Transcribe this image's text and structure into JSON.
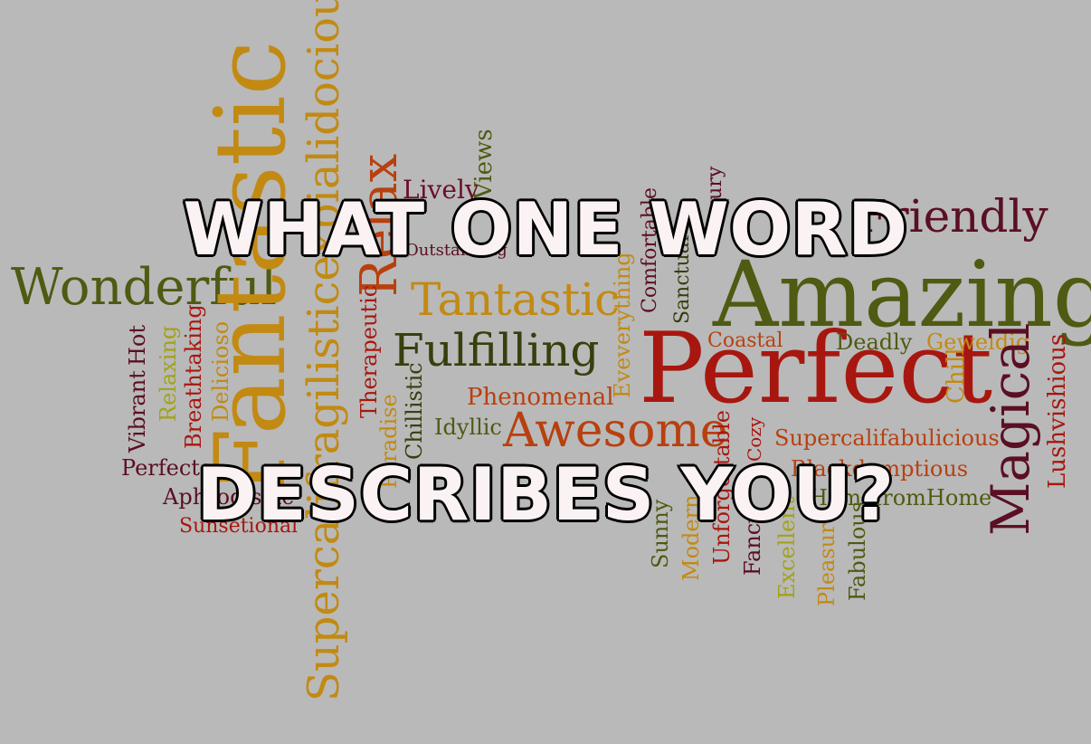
{
  "headline": {
    "line1": "WHAT ONE WORD",
    "line2": "DESCRIBES YOU?"
  },
  "colors": {
    "background": "#b9b9b9",
    "olive": "#4f5a12",
    "gold": "#c28a12",
    "maroon": "#5b0f23",
    "red": "#a8170f",
    "orange": "#b8400f",
    "darkgreen": "#36400d",
    "yellowgreen": "#a2a21a",
    "headline_fill": "#fbf3f3"
  },
  "words": [
    {
      "name": "word-wonderful",
      "text": "Wonderful"
    },
    {
      "name": "word-fantastic",
      "text": "Fantastic"
    },
    {
      "name": "word-supercalifragilisticexpialidocious",
      "text": "Supercalifragilisticexpialidocious"
    },
    {
      "name": "word-relax",
      "text": "Relax"
    },
    {
      "name": "word-lively",
      "text": "Lively"
    },
    {
      "name": "word-views",
      "text": "Views"
    },
    {
      "name": "word-friendly",
      "text": "Friendly"
    },
    {
      "name": "word-amazing",
      "text": "Amazing"
    },
    {
      "name": "word-tantastic",
      "text": "Tantastic"
    },
    {
      "name": "word-fulfilling",
      "text": "Fulfilling"
    },
    {
      "name": "word-perfect",
      "text": "Perfect"
    },
    {
      "name": "word-coastal",
      "text": "Coastal"
    },
    {
      "name": "word-deadly",
      "text": "Deadly"
    },
    {
      "name": "word-geweldig",
      "text": "Geweldig"
    },
    {
      "name": "word-chill",
      "text": "Chill"
    },
    {
      "name": "word-magical",
      "text": "Magical"
    },
    {
      "name": "word-lushvishious",
      "text": "Lushvishious"
    },
    {
      "name": "word-phenomenal",
      "text": "Phenomenal"
    },
    {
      "name": "word-awesome",
      "text": "Awesome"
    },
    {
      "name": "word-idyllic",
      "text": "Idyllic"
    },
    {
      "name": "word-chillistic",
      "text": "Chillistic"
    },
    {
      "name": "word-paradise",
      "text": "Paradise"
    },
    {
      "name": "word-therapeutic",
      "text": "Therapeutic"
    },
    {
      "name": "word-delicioso",
      "text": "Delicioso"
    },
    {
      "name": "word-breathtaking",
      "text": "Breathtaking"
    },
    {
      "name": "word-relaxing",
      "text": "Relaxing"
    },
    {
      "name": "word-vibrant",
      "text": "Vibrant"
    },
    {
      "name": "word-hot",
      "text": "Hot"
    },
    {
      "name": "word-perfecto",
      "text": "Perfecto"
    },
    {
      "name": "word-aphrodisiac",
      "text": "Aphrodisiac"
    },
    {
      "name": "word-sunsetional",
      "text": "Sunsetional"
    },
    {
      "name": "word-supercalifabulicious",
      "text": "Supercalifabulicious"
    },
    {
      "name": "word-blackdumptious",
      "text": "Blackdumptious"
    },
    {
      "name": "word-homefromhome",
      "text": "HomefromHome"
    },
    {
      "name": "word-eveverything",
      "text": "Eveverything"
    },
    {
      "name": "word-comfortable",
      "text": "Comfortable"
    },
    {
      "name": "word-sanctuary",
      "text": "Sanctuary"
    },
    {
      "name": "word-luxury",
      "text": "Luxury"
    },
    {
      "name": "word-sunny",
      "text": "Sunny"
    },
    {
      "name": "word-modern",
      "text": "Modern"
    },
    {
      "name": "word-unforgettable",
      "text": "Unforgettable"
    },
    {
      "name": "word-fancy",
      "text": "Fancy"
    },
    {
      "name": "word-excellent",
      "text": "Excellent"
    },
    {
      "name": "word-pleasure",
      "text": "Pleasure"
    },
    {
      "name": "word-fabulous",
      "text": "Fabulous"
    },
    {
      "name": "word-cozy",
      "text": "Cozy"
    },
    {
      "name": "word-outstanding",
      "text": "Outstanding"
    }
  ]
}
